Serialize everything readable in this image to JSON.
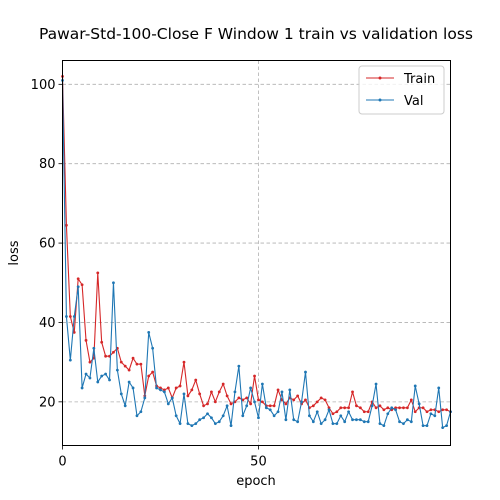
{
  "chart_data": {
    "type": "line",
    "title": "Pawar-Std-100-Close F Window 1 train vs validation loss",
    "xlabel": "epoch",
    "ylabel": "loss",
    "xlim": [
      0,
      99
    ],
    "ylim": [
      9,
      106
    ],
    "xticks": [
      0,
      50
    ],
    "yticks": [
      20,
      40,
      60,
      80,
      100
    ],
    "grid": true,
    "legend_position": "upper-right",
    "series": [
      {
        "name": "Train",
        "color": "#d62728",
        "values": [
          102,
          64.5,
          41.5,
          37.5,
          51,
          49.5,
          35.5,
          30,
          31,
          52.5,
          35,
          31.5,
          31.5,
          32.5,
          33.5,
          30,
          29,
          28,
          31,
          29.5,
          29.5,
          21.5,
          26.5,
          27.5,
          24,
          23.5,
          23,
          23.5,
          21,
          23.5,
          24,
          30,
          21.5,
          23,
          25.5,
          22,
          19,
          19.5,
          22.5,
          20,
          22.5,
          24.5,
          21.5,
          19.5,
          20,
          21,
          20.5,
          21,
          19.5,
          26.5,
          20.5,
          20,
          19,
          19,
          19,
          23,
          20.5,
          19.5,
          21,
          20.5,
          21.5,
          19.5,
          20.5,
          18.5,
          19,
          20,
          21,
          20.5,
          18.5,
          17,
          17.5,
          18.5,
          18.5,
          18.5,
          22.5,
          19,
          18.5,
          17.5,
          17.5,
          20,
          18.5,
          19,
          18,
          18.5,
          18,
          18.5,
          18.5,
          18.5,
          18.5,
          20.5,
          17.5,
          18.5,
          18.5,
          17.5,
          18,
          18,
          17.5,
          18,
          18,
          17.5
        ]
      },
      {
        "name": "Val",
        "color": "#1f77b4",
        "values": [
          101,
          41.5,
          30.5,
          41.5,
          49,
          23.5,
          27,
          26,
          33.5,
          25,
          26.5,
          27,
          25.5,
          50,
          28,
          22,
          19,
          25,
          23.5,
          16.5,
          17.5,
          21,
          37.5,
          33.5,
          23.5,
          23,
          22.5,
          19.5,
          21,
          16.5,
          14.5,
          22,
          14.5,
          14,
          14.5,
          15.5,
          16,
          17,
          16,
          14.5,
          15,
          16.5,
          19,
          14,
          22.5,
          29,
          16.5,
          19,
          23.5,
          20,
          16,
          24.5,
          18.5,
          18,
          16.5,
          17.5,
          22.5,
          15.5,
          23,
          15.5,
          15,
          20,
          27.5,
          16.5,
          15,
          17.5,
          14.5,
          15.5,
          18,
          14.5,
          14.5,
          16.5,
          15,
          17.5,
          15.5,
          15.5,
          15.5,
          15,
          15,
          19,
          24.5,
          14.5,
          14,
          17,
          18.5,
          18,
          15,
          14.5,
          15.5,
          15,
          24,
          19.5,
          14,
          14,
          17,
          16.5,
          23.5,
          13.5,
          14,
          17.5
        ]
      }
    ]
  }
}
